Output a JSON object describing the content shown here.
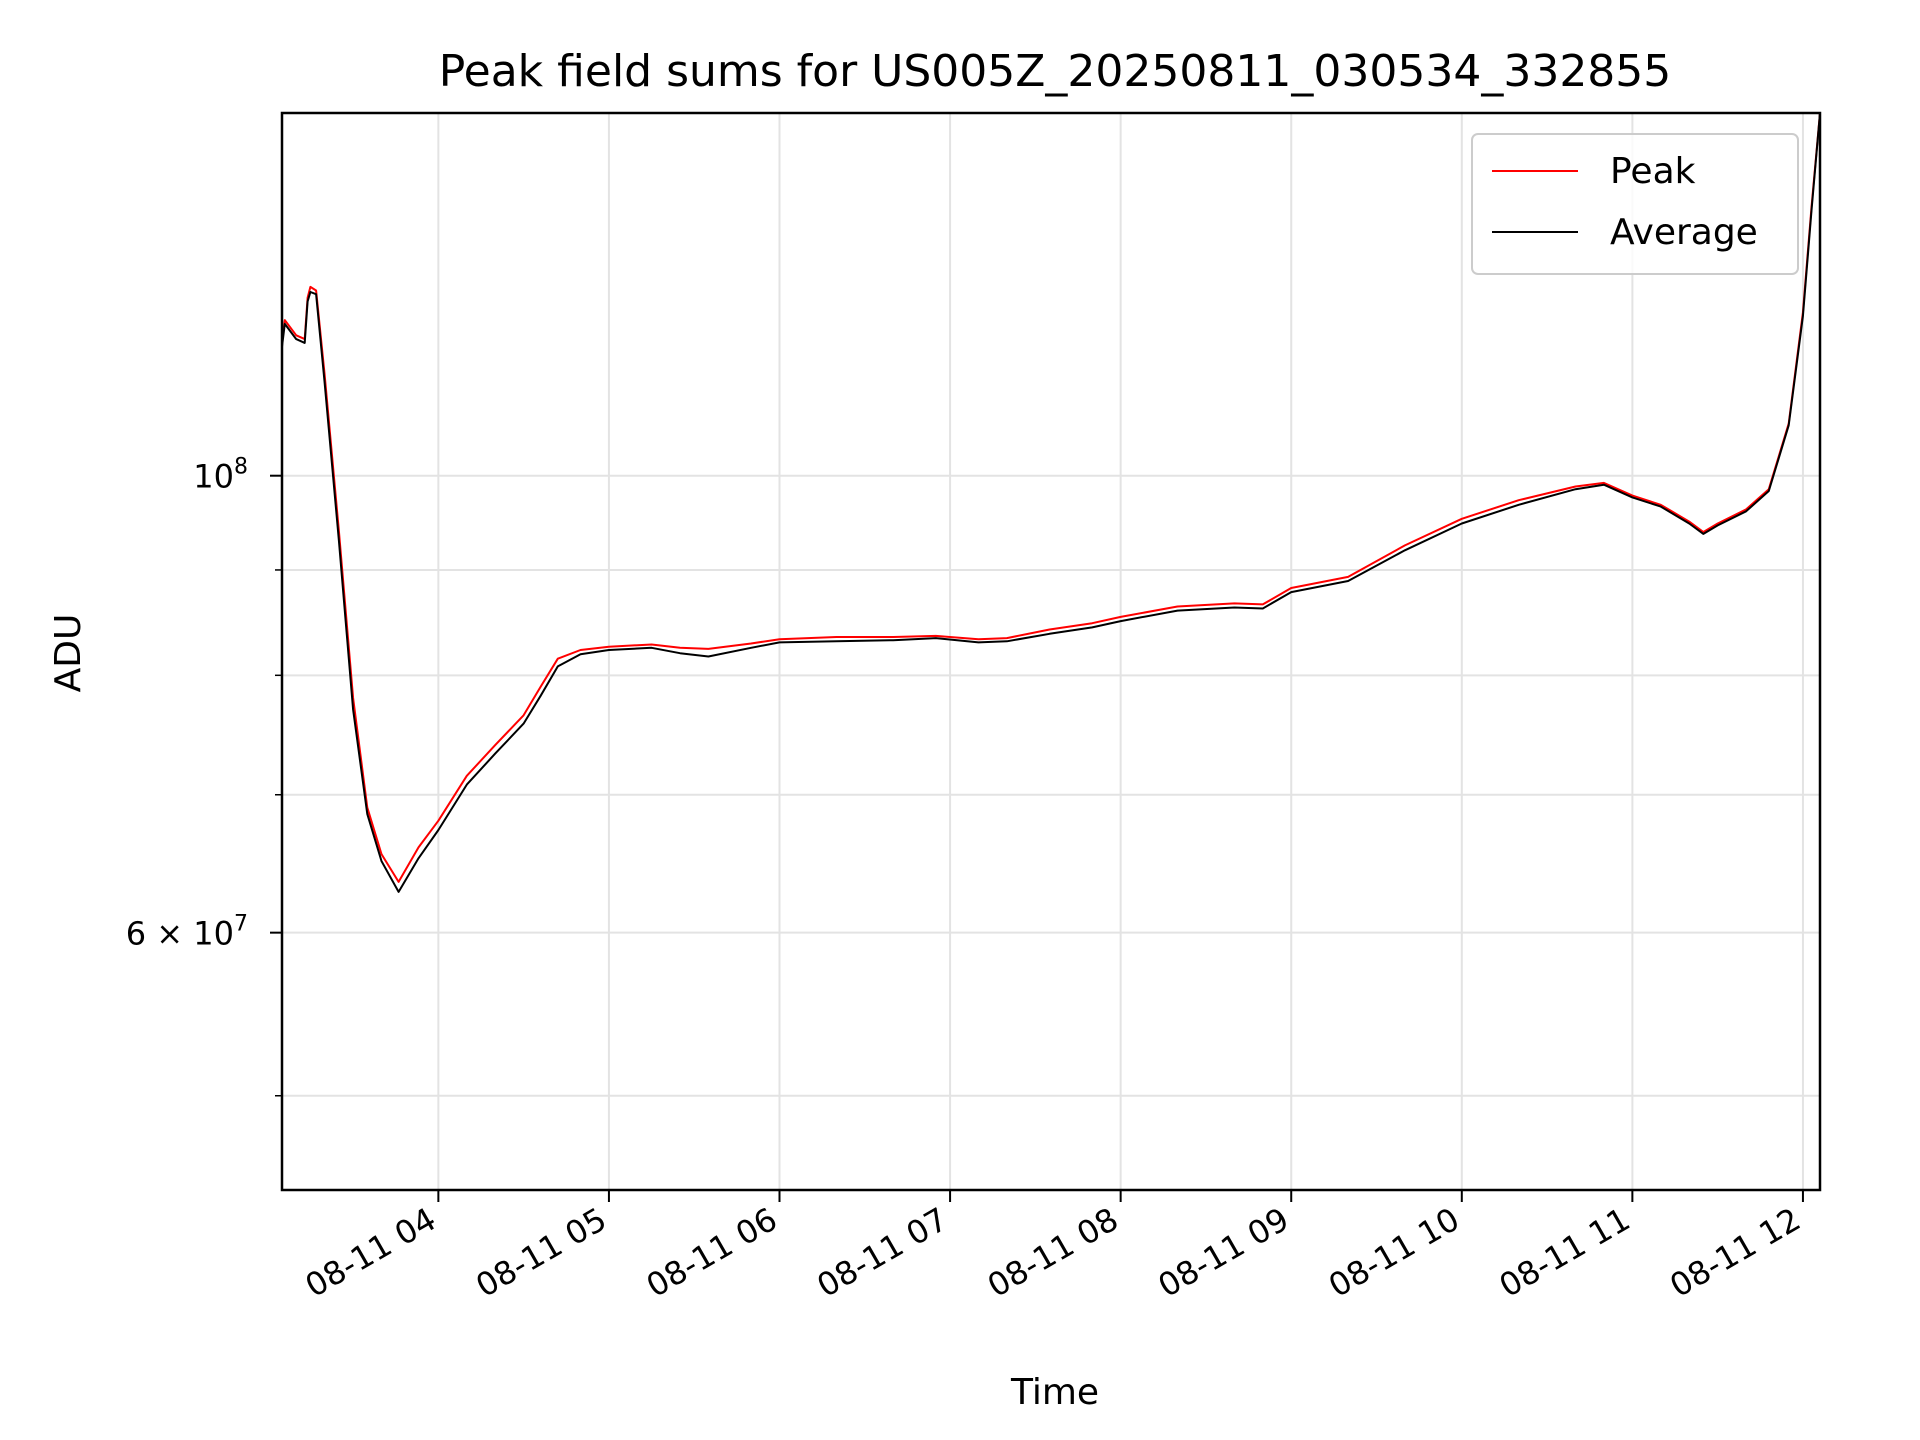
{
  "chart_data": {
    "type": "line",
    "title": "Peak field sums for US005Z_20250811_030534_332855",
    "xlabel": "Time",
    "ylabel": "ADU",
    "x_axis": {
      "kind": "time",
      "range": [
        "2025-08-11T03:05",
        "2025-08-11T12:06"
      ],
      "ticks": [
        {
          "value": "2025-08-11T04:00",
          "label": "08-11 04"
        },
        {
          "value": "2025-08-11T05:00",
          "label": "08-11 05"
        },
        {
          "value": "2025-08-11T06:00",
          "label": "08-11 06"
        },
        {
          "value": "2025-08-11T07:00",
          "label": "08-11 07"
        },
        {
          "value": "2025-08-11T08:00",
          "label": "08-11 08"
        },
        {
          "value": "2025-08-11T09:00",
          "label": "08-11 09"
        },
        {
          "value": "2025-08-11T10:00",
          "label": "08-11 10"
        },
        {
          "value": "2025-08-11T11:00",
          "label": "08-11 11"
        },
        {
          "value": "2025-08-11T12:00",
          "label": "08-11 12"
        }
      ],
      "tick_label_rotation": "30 degrees"
    },
    "y_axis": {
      "scale": "log",
      "range": [
        45000000,
        150000000
      ],
      "major_ticks": [
        {
          "value": 60000000,
          "base": "6 × 10",
          "exp": "7"
        },
        {
          "value": 100000000,
          "base": "10",
          "exp": "8"
        }
      ],
      "minor_ticks": [
        50000000,
        70000000,
        80000000,
        90000000
      ]
    },
    "grid": true,
    "legend": "top-right",
    "series": [
      {
        "name": "Peak",
        "color": "#ff0000",
        "points": [
          [
            "2025-08-11T03:05",
            116000000
          ],
          [
            "2025-08-11T03:06",
            119000000
          ],
          [
            "2025-08-11T03:10",
            117000000
          ],
          [
            "2025-08-11T03:13",
            116500000
          ],
          [
            "2025-08-11T03:14",
            122000000
          ],
          [
            "2025-08-11T03:15",
            123500000
          ],
          [
            "2025-08-11T03:17",
            123000000
          ],
          [
            "2025-08-11T03:20",
            112000000
          ],
          [
            "2025-08-11T03:25",
            94000000
          ],
          [
            "2025-08-11T03:30",
            78000000
          ],
          [
            "2025-08-11T03:35",
            69000000
          ],
          [
            "2025-08-11T03:40",
            65500000
          ],
          [
            "2025-08-11T03:46",
            63500000
          ],
          [
            "2025-08-11T03:53",
            66000000
          ],
          [
            "2025-08-11T04:00",
            68000000
          ],
          [
            "2025-08-11T04:10",
            71500000
          ],
          [
            "2025-08-11T04:20",
            74000000
          ],
          [
            "2025-08-11T04:30",
            76500000
          ],
          [
            "2025-08-11T04:36",
            79000000
          ],
          [
            "2025-08-11T04:42",
            81500000
          ],
          [
            "2025-08-11T04:50",
            82300000
          ],
          [
            "2025-08-11T05:00",
            82600000
          ],
          [
            "2025-08-11T05:15",
            82800000
          ],
          [
            "2025-08-11T05:25",
            82500000
          ],
          [
            "2025-08-11T05:35",
            82400000
          ],
          [
            "2025-08-11T05:50",
            82900000
          ],
          [
            "2025-08-11T06:00",
            83300000
          ],
          [
            "2025-08-11T06:20",
            83500000
          ],
          [
            "2025-08-11T06:40",
            83500000
          ],
          [
            "2025-08-11T06:55",
            83600000
          ],
          [
            "2025-08-11T07:10",
            83300000
          ],
          [
            "2025-08-11T07:20",
            83400000
          ],
          [
            "2025-08-11T07:35",
            84200000
          ],
          [
            "2025-08-11T07:50",
            84800000
          ],
          [
            "2025-08-11T08:00",
            85400000
          ],
          [
            "2025-08-11T08:20",
            86400000
          ],
          [
            "2025-08-11T08:40",
            86700000
          ],
          [
            "2025-08-11T08:50",
            86600000
          ],
          [
            "2025-08-11T09:00",
            88200000
          ],
          [
            "2025-08-11T09:20",
            89300000
          ],
          [
            "2025-08-11T09:40",
            92500000
          ],
          [
            "2025-08-11T10:00",
            95300000
          ],
          [
            "2025-08-11T10:20",
            97300000
          ],
          [
            "2025-08-11T10:40",
            98800000
          ],
          [
            "2025-08-11T10:50",
            99200000
          ],
          [
            "2025-08-11T11:00",
            97800000
          ],
          [
            "2025-08-11T11:10",
            96800000
          ],
          [
            "2025-08-11T11:20",
            95000000
          ],
          [
            "2025-08-11T11:25",
            93900000
          ],
          [
            "2025-08-11T11:30",
            94800000
          ],
          [
            "2025-08-11T11:40",
            96300000
          ],
          [
            "2025-08-11T11:48",
            98500000
          ],
          [
            "2025-08-11T11:55",
            106000000
          ],
          [
            "2025-08-11T12:00",
            120000000
          ],
          [
            "2025-08-11T12:03",
            135000000
          ],
          [
            "2025-08-11T12:06",
            150000000
          ]
        ]
      },
      {
        "name": "Average",
        "color": "#000000",
        "points": [
          [
            "2025-08-11T03:05",
            115500000
          ],
          [
            "2025-08-11T03:06",
            118500000
          ],
          [
            "2025-08-11T03:10",
            116500000
          ],
          [
            "2025-08-11T03:13",
            116000000
          ],
          [
            "2025-08-11T03:14",
            121500000
          ],
          [
            "2025-08-11T03:15",
            122800000
          ],
          [
            "2025-08-11T03:17",
            122500000
          ],
          [
            "2025-08-11T03:20",
            111000000
          ],
          [
            "2025-08-11T03:25",
            93000000
          ],
          [
            "2025-08-11T03:30",
            77000000
          ],
          [
            "2025-08-11T03:35",
            68500000
          ],
          [
            "2025-08-11T03:40",
            65000000
          ],
          [
            "2025-08-11T03:46",
            62800000
          ],
          [
            "2025-08-11T03:53",
            65200000
          ],
          [
            "2025-08-11T04:00",
            67300000
          ],
          [
            "2025-08-11T04:10",
            70800000
          ],
          [
            "2025-08-11T04:20",
            73300000
          ],
          [
            "2025-08-11T04:30",
            75800000
          ],
          [
            "2025-08-11T04:36",
            78200000
          ],
          [
            "2025-08-11T04:42",
            80800000
          ],
          [
            "2025-08-11T04:50",
            81900000
          ],
          [
            "2025-08-11T05:00",
            82300000
          ],
          [
            "2025-08-11T05:15",
            82500000
          ],
          [
            "2025-08-11T05:25",
            82000000
          ],
          [
            "2025-08-11T05:35",
            81700000
          ],
          [
            "2025-08-11T05:50",
            82500000
          ],
          [
            "2025-08-11T06:00",
            83000000
          ],
          [
            "2025-08-11T06:20",
            83100000
          ],
          [
            "2025-08-11T06:40",
            83200000
          ],
          [
            "2025-08-11T06:55",
            83400000
          ],
          [
            "2025-08-11T07:10",
            83000000
          ],
          [
            "2025-08-11T07:20",
            83100000
          ],
          [
            "2025-08-11T07:35",
            83800000
          ],
          [
            "2025-08-11T07:50",
            84400000
          ],
          [
            "2025-08-11T08:00",
            85000000
          ],
          [
            "2025-08-11T08:20",
            86000000
          ],
          [
            "2025-08-11T08:40",
            86300000
          ],
          [
            "2025-08-11T08:50",
            86200000
          ],
          [
            "2025-08-11T09:00",
            87800000
          ],
          [
            "2025-08-11T09:20",
            88900000
          ],
          [
            "2025-08-11T09:40",
            92000000
          ],
          [
            "2025-08-11T10:00",
            94800000
          ],
          [
            "2025-08-11T10:20",
            96800000
          ],
          [
            "2025-08-11T10:40",
            98500000
          ],
          [
            "2025-08-11T10:50",
            99000000
          ],
          [
            "2025-08-11T11:00",
            97600000
          ],
          [
            "2025-08-11T11:10",
            96600000
          ],
          [
            "2025-08-11T11:20",
            94800000
          ],
          [
            "2025-08-11T11:25",
            93700000
          ],
          [
            "2025-08-11T11:30",
            94600000
          ],
          [
            "2025-08-11T11:40",
            96100000
          ],
          [
            "2025-08-11T11:48",
            98300000
          ],
          [
            "2025-08-11T11:55",
            105800000
          ],
          [
            "2025-08-11T12:00",
            119500000
          ],
          [
            "2025-08-11T12:03",
            134500000
          ],
          [
            "2025-08-11T12:06",
            150000000
          ]
        ]
      }
    ]
  }
}
